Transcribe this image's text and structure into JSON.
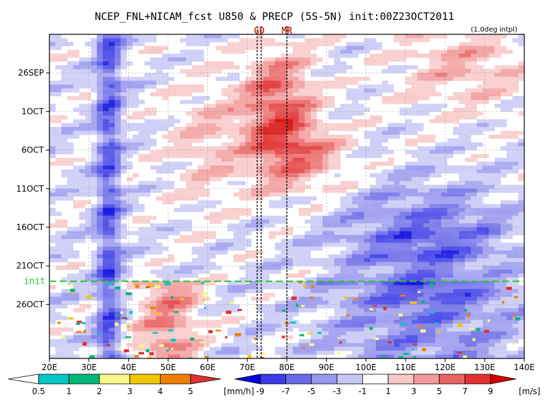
{
  "chart_data": {
    "type": "heatmap",
    "title": "NCEP_FNL+NICAM_fcst U850 & PRECP (5S-5N) init:00Z23OCT2011",
    "note": "(1.0deg intpl)",
    "x_axis": {
      "range": [
        20,
        140
      ],
      "ticks": [
        20,
        30,
        40,
        50,
        60,
        70,
        80,
        90,
        100,
        110,
        120,
        130,
        140
      ],
      "tick_labels": [
        "20E",
        "30E",
        "40E",
        "50E",
        "60E",
        "70E",
        "80E",
        "90E",
        "100E",
        "110E",
        "120E",
        "130E",
        "140E"
      ]
    },
    "y_axis": {
      "start_date": "2011-09-21",
      "end_date": "2011-11-02",
      "ticks": [
        "2011-09-26",
        "2011-10-01",
        "2011-10-06",
        "2011-10-11",
        "2011-10-16",
        "2011-10-21",
        "2011-10-26"
      ],
      "tick_labels": [
        "26SEP",
        "1OCT",
        "6OCT",
        "11OCT",
        "16OCT",
        "21OCT",
        "26OCT"
      ]
    },
    "init_line": {
      "date": "2011-10-23",
      "label": "init",
      "color": "#22cc22"
    },
    "markers": [
      {
        "label": "GD",
        "lon_range": [
          72.5,
          73.5
        ]
      },
      {
        "label": "MR",
        "lon": 80
      }
    ],
    "u850_colorbar": {
      "levels": [
        -9,
        -7,
        -5,
        -3,
        -1,
        1,
        3,
        5,
        7,
        9
      ],
      "labels": [
        "-9",
        "-7",
        "-5",
        "-3",
        "-1",
        "1",
        "3",
        "5",
        "7",
        "9"
      ],
      "unit": "[m/s]",
      "colors": [
        "#0000dd",
        "#3a3ae6",
        "#6a6ae8",
        "#9898ee",
        "#c8c8f6",
        "#ffffff",
        "#f8c8c8",
        "#f29a9a",
        "#ea6464",
        "#e23030",
        "#d40000"
      ]
    },
    "precip_colorbar": {
      "levels": [
        0.5,
        1,
        2,
        3,
        4,
        5
      ],
      "labels": [
        "0.5",
        "1",
        "2",
        "3",
        "4",
        "5"
      ],
      "unit": "[mm/h]",
      "colors": [
        "#ffffff",
        "#00c8c8",
        "#00b878",
        "#f8f888",
        "#f0c800",
        "#f08000",
        "#e03030"
      ]
    }
  }
}
